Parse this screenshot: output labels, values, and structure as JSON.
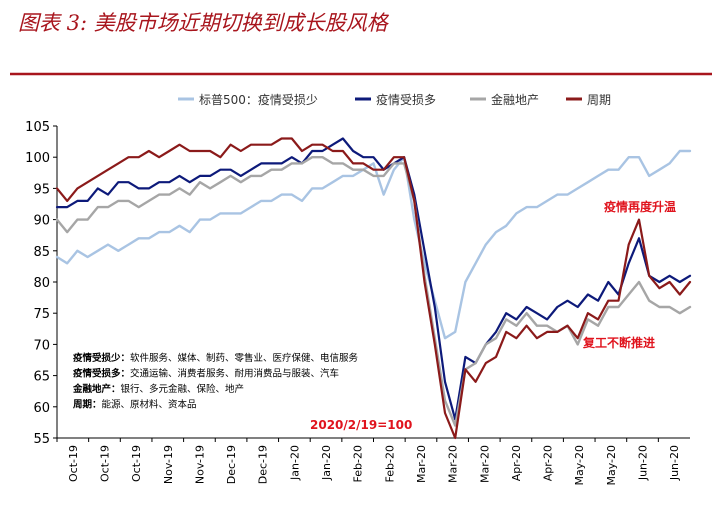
{
  "chart_data": {
    "type": "line",
    "title": "图表 3: 美股市场近期切换到成长股风格",
    "xlabel": "",
    "ylabel": "",
    "ylim": [
      55,
      105
    ],
    "yticks": [
      55,
      60,
      65,
      70,
      75,
      80,
      85,
      90,
      95,
      100,
      105
    ],
    "grid": false,
    "legend_position": "top",
    "x_tick_labels": [
      "Oct-19",
      "Oct-19",
      "Oct-19",
      "Nov-19",
      "Nov-19",
      "Dec-19",
      "Dec-19",
      "Jan-20",
      "Jan-20",
      "Feb-20",
      "Feb-20",
      "Mar-20",
      "Mar-20",
      "Mar-20",
      "Apr-20",
      "Apr-20",
      "May-20",
      "May-20",
      "Jun-20",
      "Jun-20"
    ],
    "x_index": [
      0,
      3,
      6,
      9,
      12,
      15,
      18,
      21,
      24,
      27,
      30,
      33,
      36,
      39,
      42,
      45,
      48,
      51,
      54,
      57,
      60,
      63,
      66,
      69,
      72,
      75,
      78,
      81,
      84,
      87,
      90,
      93,
      96,
      99,
      102,
      105,
      108,
      111,
      114,
      117,
      120,
      123,
      126,
      129,
      132,
      135,
      138,
      141,
      144,
      147,
      150,
      153,
      156,
      159,
      162,
      165,
      168,
      171,
      174,
      177,
      180,
      183,
      186
    ],
    "series": [
      {
        "name": "标普500：疫情受损少",
        "color": "#a9c4e3",
        "values": [
          84,
          83,
          85,
          84,
          85,
          86,
          85,
          86,
          87,
          87,
          88,
          88,
          89,
          88,
          90,
          90,
          91,
          91,
          91,
          92,
          93,
          93,
          94,
          94,
          93,
          95,
          95,
          96,
          97,
          97,
          98,
          99,
          94,
          98,
          100,
          90,
          83,
          77,
          71,
          72,
          80,
          83,
          86,
          88,
          89,
          91,
          92,
          92,
          93,
          94,
          94,
          95,
          96,
          97,
          98,
          98,
          100,
          100,
          97,
          98,
          99,
          101,
          101
        ]
      },
      {
        "name": "疫情受损多",
        "color": "#0d1a7a",
        "values": [
          92,
          92,
          93,
          93,
          95,
          94,
          96,
          96,
          95,
          95,
          96,
          96,
          97,
          96,
          97,
          97,
          98,
          98,
          97,
          98,
          99,
          99,
          99,
          100,
          99,
          101,
          101,
          102,
          103,
          101,
          100,
          100,
          98,
          99,
          100,
          94,
          85,
          76,
          64,
          58,
          68,
          67,
          70,
          72,
          75,
          74,
          76,
          75,
          74,
          76,
          77,
          76,
          78,
          77,
          80,
          78,
          83,
          87,
          81,
          80,
          81,
          80,
          81
        ]
      },
      {
        "name": "金融地产",
        "color": "#a6a6a6",
        "values": [
          90,
          88,
          90,
          90,
          92,
          92,
          93,
          93,
          92,
          93,
          94,
          94,
          95,
          94,
          96,
          95,
          96,
          97,
          96,
          97,
          97,
          98,
          98,
          99,
          99,
          100,
          100,
          99,
          99,
          98,
          98,
          97,
          97,
          99,
          99,
          93,
          81,
          71,
          61,
          57,
          66,
          67,
          70,
          71,
          74,
          73,
          75,
          73,
          73,
          72,
          73,
          70,
          74,
          73,
          76,
          76,
          78,
          80,
          77,
          76,
          76,
          75,
          76
        ]
      },
      {
        "name": "周期",
        "color": "#8b1a1a",
        "values": [
          95,
          93,
          95,
          96,
          97,
          98,
          99,
          100,
          100,
          101,
          100,
          101,
          102,
          101,
          101,
          101,
          100,
          102,
          101,
          102,
          102,
          102,
          103,
          103,
          101,
          102,
          102,
          101,
          101,
          99,
          99,
          98,
          98,
          100,
          100,
          93,
          80,
          70,
          59,
          55,
          66,
          64,
          67,
          68,
          72,
          71,
          73,
          71,
          72,
          72,
          73,
          71,
          75,
          74,
          77,
          77,
          86,
          90,
          81,
          79,
          80,
          78,
          80
        ]
      }
    ],
    "notes": [
      {
        "label": "疫情受损少：",
        "text": "软件服务、媒体、制药、零售业、医疗保健、电信服务"
      },
      {
        "label": "疫情受损多：",
        "text": "交通运输、消费者服务、耐用消费品与服装、汽车"
      },
      {
        "label": "金融地产：",
        "text": "银行、多元金融、保险、地产"
      },
      {
        "label": "周期：",
        "text": "能源、原材料、资本品"
      }
    ],
    "annotations": [
      {
        "text": "疫情再度升温",
        "color": "#e0141e"
      },
      {
        "text": "复工不断推进",
        "color": "#e0141e"
      },
      {
        "text": "2020/2/19=100",
        "color": "#e0141e"
      }
    ]
  }
}
